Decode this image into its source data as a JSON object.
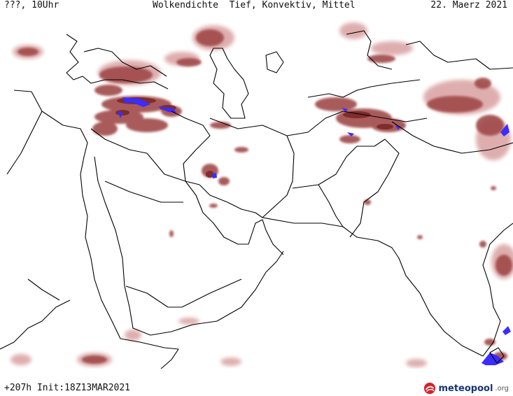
{
  "header": {
    "run_label": "???, 10Uhr",
    "title": "Wolkendichte  Tief, Konvektiv, Mittel",
    "date": "22. Maerz 2021"
  },
  "footer": {
    "forecast_info": "+207h Init:18Z13MAR2021",
    "brand_name": "meteopool",
    "brand_suffix": ".org"
  },
  "map": {
    "region": "Middle East / South Asia",
    "cloud_colors": {
      "low_density": "#d9a0a0",
      "medium_density": "#a04848",
      "high_density": "#7a2828",
      "max_density": "#3b2cff"
    },
    "border_color": "#000000"
  }
}
